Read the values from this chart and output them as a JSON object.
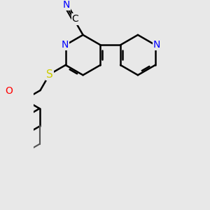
{
  "background_color": "#e8e8e8",
  "line_color": "#000000",
  "bond_width": 1.8,
  "atom_colors": {
    "N": "#0000ff",
    "O": "#ff0000",
    "S": "#cccc00",
    "C": "#000000"
  },
  "fig_size": [
    3.0,
    3.0
  ],
  "dpi": 100
}
